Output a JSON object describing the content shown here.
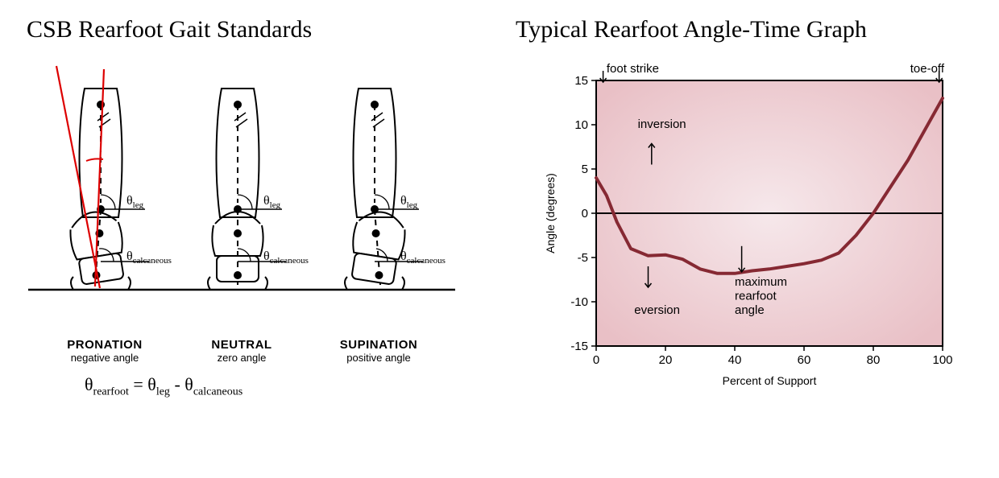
{
  "left": {
    "title": "CSB Rearfoot Gait Standards",
    "formula": {
      "lhs": "θ",
      "lhs_sub": "rearfoot",
      "eq": " = ",
      "t1": "θ",
      "t1_sub": "leg",
      "minus": " - ",
      "t2": "θ",
      "t2_sub": "calcaneous"
    },
    "feet": [
      {
        "name": "PRONATION",
        "sub": "negative angle",
        "tilt": -9
      },
      {
        "name": "NEUTRAL",
        "sub": "zero angle",
        "tilt": 0
      },
      {
        "name": "SUPINATION",
        "sub": "positive angle",
        "tilt": 9
      }
    ],
    "theta_labels": {
      "leg": "leg",
      "calc": "calcaneous"
    },
    "colors": {
      "ink": "#000000",
      "red": "#dd0000"
    }
  },
  "right": {
    "title": "Typical Rearfoot Angle-Time Graph",
    "xlabel": "Percent of Support",
    "ylabel": "Angle (degrees)",
    "xlim": [
      0,
      100
    ],
    "xticks": [
      0,
      20,
      40,
      60,
      80,
      100
    ],
    "ylim": [
      -15,
      15
    ],
    "yticks": [
      -15,
      -10,
      -5,
      0,
      5,
      10,
      15
    ],
    "series": {
      "points": [
        [
          0,
          4
        ],
        [
          3,
          2
        ],
        [
          6,
          -1
        ],
        [
          10,
          -4
        ],
        [
          15,
          -4.8
        ],
        [
          20,
          -4.7
        ],
        [
          25,
          -5.2
        ],
        [
          30,
          -6.3
        ],
        [
          35,
          -6.8
        ],
        [
          40,
          -6.8
        ],
        [
          45,
          -6.5
        ],
        [
          50,
          -6.3
        ],
        [
          55,
          -6.0
        ],
        [
          60,
          -5.7
        ],
        [
          65,
          -5.3
        ],
        [
          70,
          -4.5
        ],
        [
          75,
          -2.5
        ],
        [
          80,
          0
        ],
        [
          85,
          3
        ],
        [
          90,
          6
        ],
        [
          95,
          9.5
        ],
        [
          100,
          13
        ]
      ],
      "color": "#862933",
      "width": 4
    },
    "bg_inner": "#e9c0c6",
    "bg_center": "#f6e8eb",
    "axis_color": "#000000",
    "annotations": {
      "foot_strike": "foot strike",
      "toe_off": "toe-off",
      "inversion": "inversion",
      "eversion": "eversion",
      "max1": "maximum",
      "max2": "rearfoot",
      "max3": "angle"
    }
  }
}
